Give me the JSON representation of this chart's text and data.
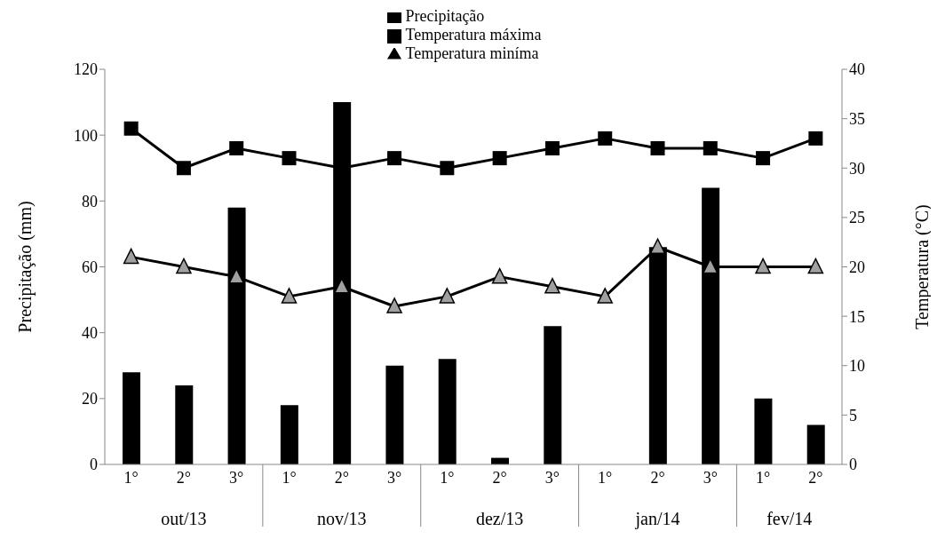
{
  "chart_data": {
    "type": "bar",
    "categories": [
      "1°",
      "2°",
      "3°",
      "1°",
      "2°",
      "3°",
      "1°",
      "2°",
      "3°",
      "1°",
      "2°",
      "3°",
      "1°",
      "2°"
    ],
    "series": [
      {
        "name": "Precipitação",
        "color": "#000000",
        "values": [
          28,
          24,
          78,
          18,
          110,
          30,
          32,
          2,
          42,
          0,
          66,
          84,
          20,
          12
        ]
      },
      {
        "name": "Temperatura máxima",
        "type": "line",
        "axis": "y2",
        "color": "#000000",
        "marker": "square",
        "values": [
          34,
          30,
          32,
          31,
          30,
          31,
          30,
          31,
          32,
          33,
          32,
          32,
          31,
          33
        ]
      },
      {
        "name": "Temperatura miníma",
        "type": "line",
        "axis": "y2",
        "color": "#000000",
        "marker": "triangle",
        "values": [
          21,
          20,
          19,
          17,
          18,
          16,
          17,
          19,
          18,
          17,
          22,
          20,
          20,
          20
        ]
      }
    ],
    "ylabel": "Precipitação (mm)",
    "y2label": "Temperatura  (°C)",
    "ylim": [
      0,
      120
    ],
    "yticks": [
      0,
      20,
      40,
      60,
      80,
      100,
      120
    ],
    "y2lim": [
      0,
      40
    ],
    "y2ticks": [
      0,
      5,
      10,
      15,
      20,
      25,
      30,
      35,
      40
    ],
    "annotations": [
      "out/13",
      "nov/13",
      "dez/13",
      "jan/14",
      "fev/14"
    ],
    "grid": false,
    "legend": "top",
    "line_style": "solid"
  }
}
